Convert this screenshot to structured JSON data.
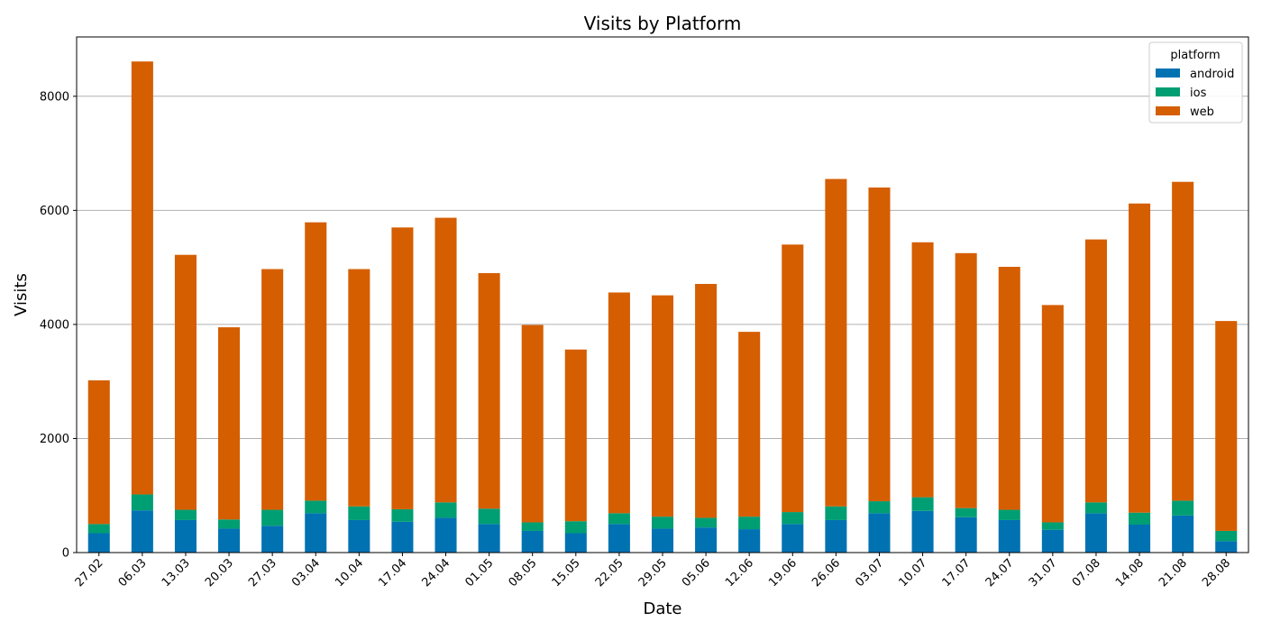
{
  "chart_data": {
    "type": "bar",
    "stacked": true,
    "title": "Visits by Platform",
    "xlabel": "Date",
    "ylabel": "Visits",
    "ylim": [
      0,
      9040
    ],
    "yticks": [
      0,
      2000,
      4000,
      6000,
      8000
    ],
    "grid": "y",
    "legend": {
      "title": "platform",
      "position": "top-right"
    },
    "categories": [
      "27.02",
      "06.03",
      "13.03",
      "20.03",
      "27.03",
      "03.04",
      "10.04",
      "17.04",
      "24.04",
      "01.05",
      "08.05",
      "15.05",
      "22.05",
      "29.05",
      "05.06",
      "12.06",
      "19.06",
      "26.06",
      "03.07",
      "10.07",
      "17.07",
      "24.07",
      "31.07",
      "07.08",
      "14.08",
      "21.08",
      "28.08"
    ],
    "series": [
      {
        "name": "android",
        "color": "#0072b2",
        "values": [
          340,
          740,
          570,
          420,
          470,
          690,
          570,
          540,
          610,
          500,
          380,
          340,
          500,
          420,
          440,
          410,
          500,
          570,
          690,
          730,
          620,
          570,
          400,
          690,
          490,
          650,
          200
        ]
      },
      {
        "name": "ios",
        "color": "#009e73",
        "values": [
          160,
          280,
          180,
          160,
          280,
          220,
          240,
          220,
          270,
          270,
          150,
          210,
          190,
          210,
          170,
          220,
          210,
          240,
          210,
          240,
          160,
          180,
          130,
          190,
          210,
          260,
          180
        ]
      },
      {
        "name": "web",
        "color": "#d55e00",
        "values": [
          2520,
          7590,
          4470,
          3370,
          4220,
          4880,
          4160,
          4940,
          4990,
          4130,
          3460,
          3010,
          3870,
          3880,
          4100,
          3240,
          4690,
          5740,
          5500,
          4470,
          4470,
          4260,
          3810,
          4610,
          5420,
          5590,
          3680
        ]
      }
    ]
  }
}
